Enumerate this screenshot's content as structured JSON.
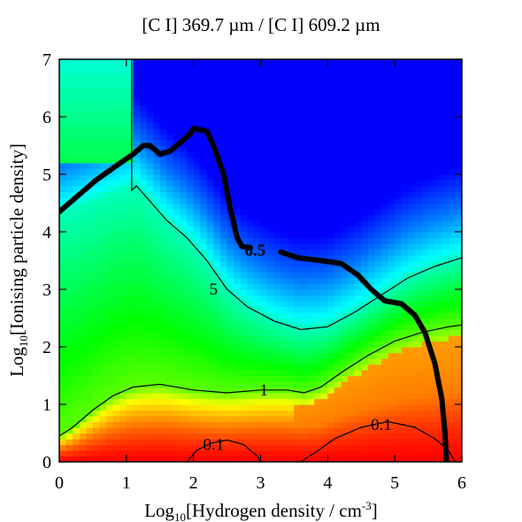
{
  "chart_data": {
    "type": "heatmap",
    "title": "[C I] 369.7 µm / [C I] 609.2 µm",
    "xlabel": {
      "prefix": "Log",
      "sub": "10",
      "main": "[Hydrogen density / cm",
      "sup": "-3",
      "suffix": "]"
    },
    "ylabel": {
      "prefix": "Log",
      "sub": "10",
      "main": "[Ionising particle density]"
    },
    "xlim": [
      0,
      6
    ],
    "ylim": [
      0,
      7
    ],
    "xticks": [
      0,
      1,
      2,
      3,
      4,
      5,
      6
    ],
    "yticks": [
      0,
      1,
      2,
      3,
      4,
      5,
      6,
      7
    ],
    "xtick_labels": [
      "0",
      "1",
      "2",
      "3",
      "4",
      "5",
      "6"
    ],
    "ytick_labels": [
      "0",
      "1",
      "2",
      "3",
      "4",
      "5",
      "6",
      "7"
    ],
    "colormap": [
      "#ff0000",
      "#ff7a00",
      "#ffff00",
      "#00ff00",
      "#00ffff",
      "#0070ff",
      "#0000ff"
    ],
    "grid": false,
    "contours": [
      {
        "label": "5",
        "label_at": [
          2.3,
          3.0
        ],
        "points": [
          [
            1.08,
            7
          ],
          [
            1.08,
            4.72
          ],
          [
            1.15,
            4.8
          ],
          [
            1.3,
            4.6
          ],
          [
            1.6,
            4.2
          ],
          [
            1.9,
            3.9
          ],
          [
            2.2,
            3.5
          ],
          [
            2.5,
            3.0
          ],
          [
            2.8,
            2.7
          ],
          [
            3.2,
            2.45
          ],
          [
            3.6,
            2.3
          ],
          [
            4.0,
            2.35
          ],
          [
            4.4,
            2.6
          ],
          [
            4.8,
            2.9
          ],
          [
            5.2,
            3.2
          ],
          [
            5.6,
            3.4
          ],
          [
            6,
            3.55
          ]
        ]
      },
      {
        "label": "1",
        "label_at": [
          3.05,
          1.25
        ],
        "points": [
          [
            0,
            0.45
          ],
          [
            0.2,
            0.6
          ],
          [
            0.5,
            0.9
          ],
          [
            0.8,
            1.15
          ],
          [
            1.1,
            1.3
          ],
          [
            1.5,
            1.35
          ],
          [
            2.0,
            1.25
          ],
          [
            2.5,
            1.2
          ],
          [
            3.0,
            1.25
          ],
          [
            3.4,
            1.25
          ],
          [
            3.65,
            1.2
          ],
          [
            3.9,
            1.3
          ],
          [
            4.2,
            1.55
          ],
          [
            4.6,
            1.85
          ],
          [
            5.0,
            2.1
          ],
          [
            5.4,
            2.25
          ],
          [
            5.8,
            2.35
          ],
          [
            6,
            2.38
          ]
        ]
      },
      {
        "label": "0.1",
        "label_at": [
          2.3,
          0.3
        ],
        "points": [
          [
            1.9,
            0
          ],
          [
            2.05,
            0.2
          ],
          [
            2.25,
            0.32
          ],
          [
            2.5,
            0.38
          ],
          [
            2.75,
            0.3
          ],
          [
            2.95,
            0.1
          ],
          [
            3.0,
            0
          ]
        ]
      },
      {
        "label": "0.1",
        "label_at": [
          4.8,
          0.65
        ],
        "points": [
          [
            3.6,
            0
          ],
          [
            3.8,
            0.15
          ],
          [
            4.1,
            0.4
          ],
          [
            4.5,
            0.6
          ],
          [
            4.9,
            0.7
          ],
          [
            5.3,
            0.6
          ],
          [
            5.6,
            0.4
          ],
          [
            5.8,
            0.2
          ],
          [
            5.9,
            0
          ]
        ]
      }
    ],
    "thick_contour": {
      "label": "6.5",
      "label_at": [
        2.92,
        3.68
      ],
      "points": [
        [
          0,
          4.35
        ],
        [
          0.25,
          4.6
        ],
        [
          0.55,
          4.9
        ],
        [
          0.85,
          5.15
        ],
        [
          1.1,
          5.35
        ],
        [
          1.25,
          5.5
        ],
        [
          1.35,
          5.5
        ],
        [
          1.5,
          5.35
        ],
        [
          1.65,
          5.4
        ],
        [
          1.85,
          5.6
        ],
        [
          1.95,
          5.7
        ],
        [
          2.0,
          5.8
        ],
        [
          2.2,
          5.75
        ],
        [
          2.3,
          5.5
        ],
        [
          2.45,
          5.0
        ],
        [
          2.55,
          4.4
        ],
        [
          2.65,
          3.9
        ],
        [
          2.72,
          3.75
        ],
        [
          2.85,
          3.72
        ]
      ],
      "points2": [
        [
          3.3,
          3.65
        ],
        [
          3.55,
          3.55
        ],
        [
          3.9,
          3.5
        ],
        [
          4.2,
          3.45
        ],
        [
          4.45,
          3.25
        ],
        [
          4.65,
          3.0
        ],
        [
          4.85,
          2.8
        ],
        [
          5.1,
          2.75
        ],
        [
          5.3,
          2.55
        ],
        [
          5.45,
          2.25
        ],
        [
          5.6,
          1.7
        ],
        [
          5.7,
          1.1
        ],
        [
          5.75,
          0.5
        ],
        [
          5.77,
          0
        ]
      ]
    }
  }
}
